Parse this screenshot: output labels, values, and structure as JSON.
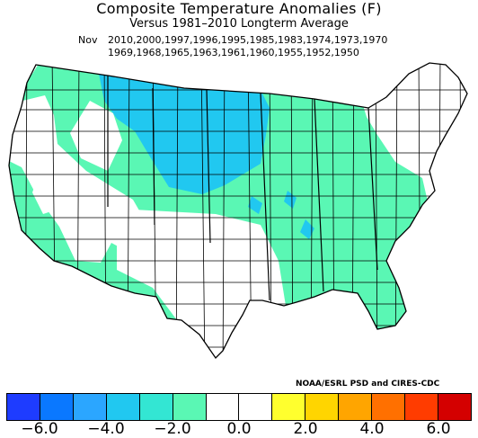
{
  "title": "Composite Temperature Anomalies (F)",
  "subtitle": "Versus 1981–2010 Longterm Average",
  "month": "Nov",
  "years_line1": "2010,2000,1997,1996,1995,1985,1983,1974,1973,1970",
  "years_line2": "1969,1968,1965,1963,1961,1960,1955,1952,1950",
  "credit": "NOAA/ESRL PSD and CIRES-CDC",
  "colorbar": {
    "ticks": [
      "−6.0",
      "−4.0",
      "−2.0",
      "0.0",
      "2.0",
      "4.0",
      "6.0"
    ],
    "colors": [
      "#1e3cff",
      "#0a78ff",
      "#2ba6ff",
      "#21c8f0",
      "#33e6d3",
      "#5af7b4",
      "#ffffff",
      "#ffffff",
      "#ffff2e",
      "#ffd500",
      "#ffa500",
      "#ff7000",
      "#ff3c00",
      "#d40000"
    ]
  },
  "map_colors": {
    "cold_strong": "#21c8f0",
    "cold_weak": "#5af7b4",
    "neutral": "#ffffff",
    "outline": "#000000"
  }
}
